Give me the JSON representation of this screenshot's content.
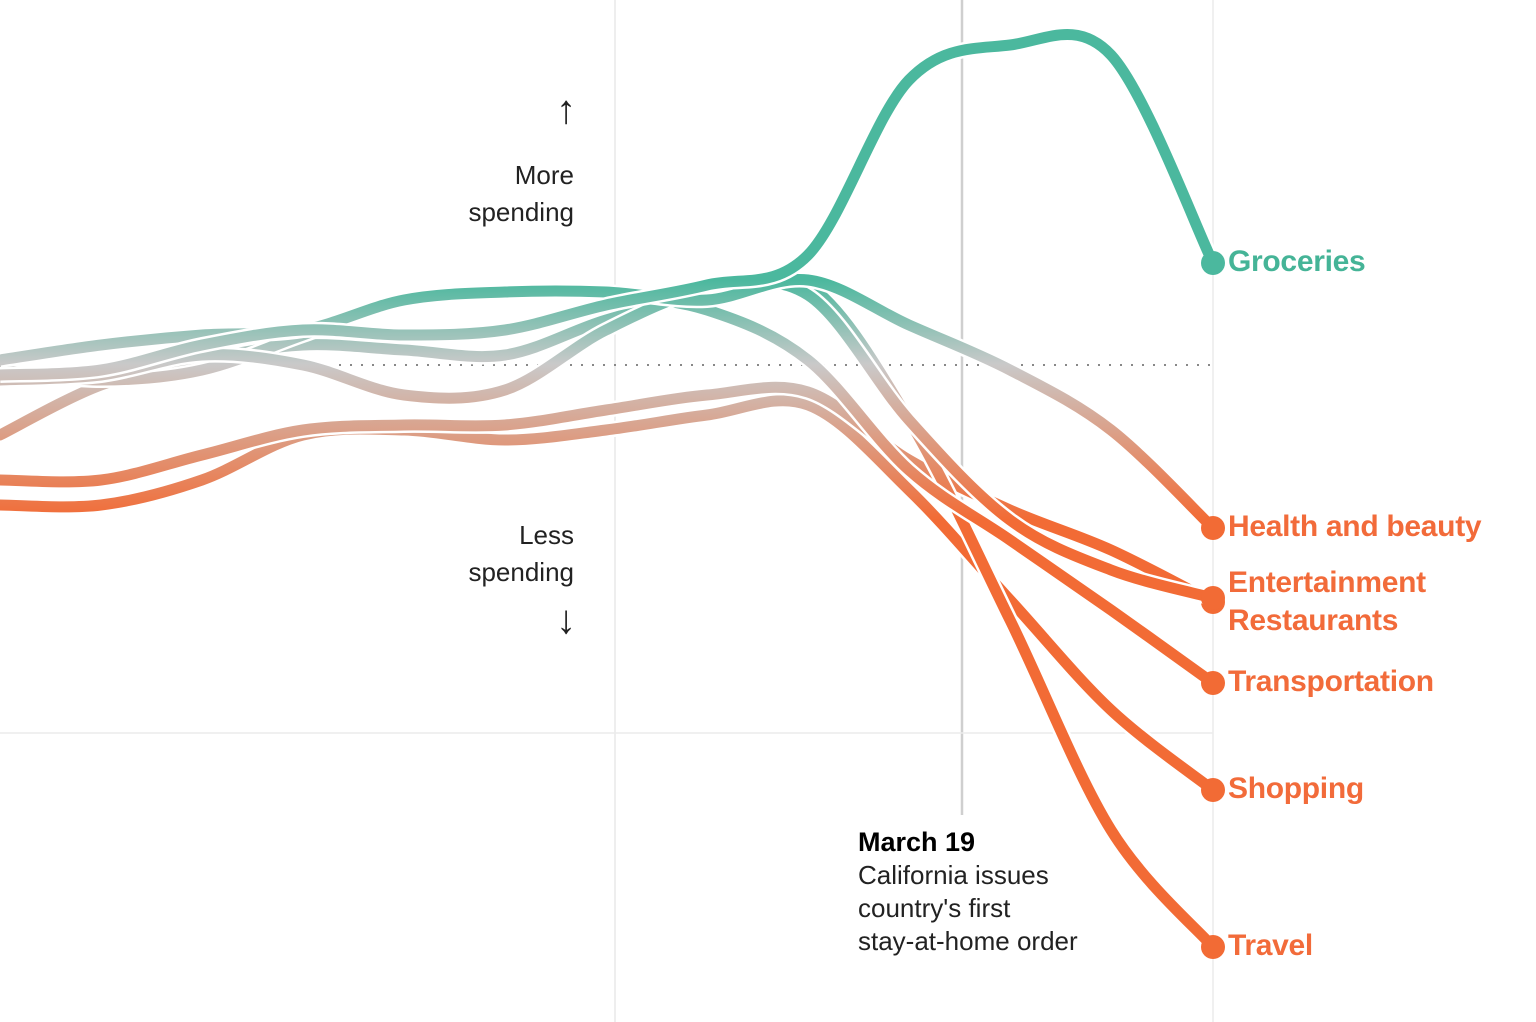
{
  "chart_data": {
    "type": "line",
    "title": "",
    "xlabel": "",
    "ylabel": "",
    "baseline": 0,
    "grid": "vertical lines plus a dotted baseline",
    "x": [
      0,
      1,
      2,
      3,
      4,
      5,
      6,
      7,
      8,
      9,
      10,
      11,
      12
    ],
    "event_x": 9.5,
    "colors": {
      "more": "#4bb89e",
      "neutral": "#c9c9c9",
      "less": "#f26b35",
      "groceries_label": "#45b497",
      "other_labels": "#f26b3a"
    },
    "series": [
      {
        "name": "Groceries",
        "values": [
          -1.0,
          -0.5,
          2.0,
          3.5,
          3.0,
          3.5,
          6.0,
          8.0,
          11.0,
          28.5,
          32.0,
          31.0,
          10.2
        ],
        "label_color": "#45b497"
      },
      {
        "name": "Health and beauty",
        "values": [
          0.5,
          2.0,
          3.0,
          3.5,
          6.5,
          7.3,
          7.3,
          6.5,
          8.5,
          4.0,
          -0.5,
          -6.5,
          -16.3
        ],
        "label_color": "#f26b3a"
      },
      {
        "name": "Entertainment",
        "values": [
          -1.5,
          -1.0,
          1.0,
          0.0,
          -3.0,
          -2.5,
          3.5,
          7.5,
          7.0,
          -5.5,
          -15.5,
          -20.5,
          -23.3
        ],
        "label_color": "#f26b3a"
      },
      {
        "name": "Restaurants",
        "values": [
          -11.5,
          -11.5,
          -9.0,
          -6.5,
          -6.0,
          -6.0,
          -4.5,
          -3.0,
          -2.7,
          -9.5,
          -14.5,
          -18.5,
          -23.7
        ],
        "label_color": "#f26b3a"
      },
      {
        "name": "Transportation",
        "values": [
          -0.5,
          -1.5,
          -0.5,
          3.0,
          6.5,
          7.5,
          7.0,
          5.5,
          0.5,
          -10.5,
          -17.5,
          -24.5,
          -31.8
        ],
        "label_color": "#f26b3a"
      },
      {
        "name": "Shopping",
        "values": [
          -14.0,
          -14.0,
          -11.5,
          -7.0,
          -6.5,
          -7.5,
          -6.5,
          -5.0,
          -4.0,
          -12.5,
          -23.5,
          -34.5,
          -42.5
        ],
        "label_color": "#f26b3a"
      },
      {
        "name": "Travel",
        "values": [
          -7.0,
          -2.0,
          0.5,
          2.0,
          1.5,
          1.0,
          4.5,
          7.0,
          8.0,
          -5.5,
          -25.5,
          -46.5,
          -58.2
        ],
        "label_color": "#f26b3a"
      }
    ]
  },
  "annotations": {
    "more_line1": "More",
    "more_line2": "spending",
    "less_line1": "Less",
    "less_line2": "spending",
    "up_arrow": "↑",
    "down_arrow": "↓",
    "event_title": "March 19",
    "event_line1": "California issues",
    "event_line2": "country's first",
    "event_line3": "stay-at-home order"
  }
}
